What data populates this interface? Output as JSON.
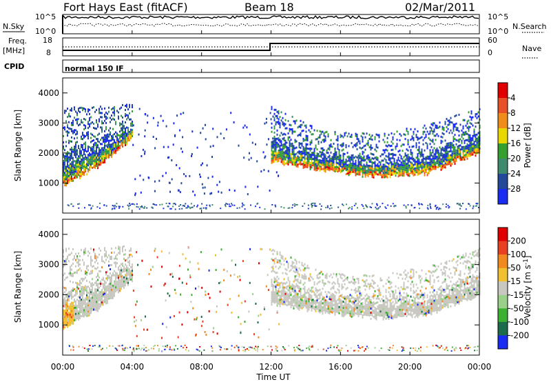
{
  "header": {
    "title": "Fort Hays East (fitACF)",
    "beam": "Beam 18",
    "date": "02/Mar/2011"
  },
  "strip_panels": {
    "nsky_label": "N.Sky",
    "nsky_ticks": [
      "10^5",
      "10^0"
    ],
    "nsearch_label": "N.Search",
    "nsearch_ticks": [
      "10^5",
      "10^0"
    ],
    "freq_label_line1": "Freq.",
    "freq_label_line2": "[MHz]",
    "freq_ticks": [
      "18",
      "8"
    ],
    "nave_label": "Nave",
    "nave_ticks": [
      "60",
      "0"
    ],
    "cpid_label": "CPID",
    "cpid_text": "normal 150 IF"
  },
  "chart_data": [
    {
      "type": "heatmap",
      "title": "",
      "quantity": "Power",
      "ylabel": "Slant Range [km]",
      "xlabel": "",
      "x_range_hours": [
        0,
        24
      ],
      "ylim": [
        0,
        4500
      ],
      "y_ticks": [
        "1000",
        "2000",
        "3000",
        "4000"
      ],
      "colorbar_label": "Power [dB]",
      "colorbar_ticks": [
        "4",
        "8",
        "12",
        "16",
        "20",
        "24",
        "28"
      ],
      "colorbar_colors": [
        "#1a2cf0",
        "#24499b",
        "#3e8a6e",
        "#35a030",
        "#e8d800",
        "#ef8c1a",
        "#e85028",
        "#e00000"
      ],
      "echo_regions": [
        {
          "start_hour": 0.0,
          "end_hour": 4.0,
          "lower_km": [
            900,
            1500,
            2500
          ],
          "upper_km": [
            3500,
            3500,
            3600
          ]
        },
        {
          "start_hour": 12.0,
          "end_hour": 24.0,
          "lower_km": [
            1700,
            1400,
            1200,
            1300,
            2000
          ],
          "upper_km": [
            3500,
            2700,
            2600,
            2900,
            3500
          ]
        }
      ],
      "near_range_clutter_km": [
        150,
        350
      ]
    },
    {
      "type": "heatmap",
      "title": "",
      "quantity": "Velocity",
      "ylabel": "Slant Range [km]",
      "xlabel": "Time UT",
      "x_range_hours": [
        0,
        24
      ],
      "ylim": [
        0,
        4500
      ],
      "y_ticks": [
        "1000",
        "2000",
        "3000",
        "4000"
      ],
      "x_ticks": [
        "00:00",
        "04:00",
        "08:00",
        "12:00",
        "16:00",
        "20:00",
        "00:00"
      ],
      "colorbar_label": "Velocity [m s",
      "colorbar_label_exp": "-1",
      "colorbar_label_end": "]",
      "colorbar_ticks": [
        "200",
        "100",
        "50",
        "15",
        "-15",
        "-50",
        "-100",
        "-200"
      ],
      "colorbar_colors": [
        "#1a2cf0",
        "#1c6b4a",
        "#3cb030",
        "#9ad08a",
        "#c8c8c0",
        "#f0c030",
        "#f08a20",
        "#e84020",
        "#e00000"
      ],
      "dominant_value_range": [
        -15,
        15
      ]
    }
  ]
}
